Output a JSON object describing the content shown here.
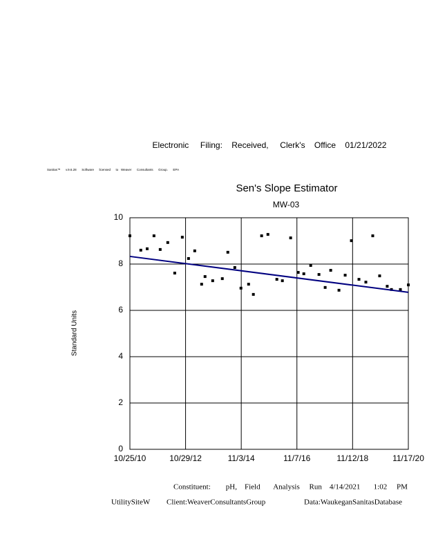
{
  "header": {
    "filing": "Electronic     Filing:    Received,     Clerk's    Office    01/21/2022",
    "software": "Sanitas™      v.9.6.28      Software      licensed      to   Weaver      Consultants      Group.      EPA"
  },
  "chart_data": {
    "type": "scatter",
    "title": "Sen's Slope Estimator",
    "subtitle": "MW-03",
    "y_label": "Standard Units",
    "x": [
      "10/25/10",
      "03/18/11",
      "06/10/11",
      "09/08/11",
      "11/29/11",
      "03/08/12",
      "06/08/12",
      "09/16/12",
      "12/07/12",
      "02/27/13",
      "05/29/13",
      "07/13/13",
      "10/22/13",
      "02/26/14",
      "05/10/14",
      "08/10/14",
      "10/30/14",
      "02/08/15",
      "04/12/15",
      "07/30/15",
      "10/21/15",
      "02/16/16",
      "04/29/16",
      "08/16/16",
      "11/24/16",
      "02/06/17",
      "05/08/17",
      "08/25/17",
      "11/15/17",
      "01/27/18",
      "05/16/18",
      "08/06/18",
      "10/27/18",
      "02/04/19",
      "05/06/19",
      "08/05/19",
      "11/04/19",
      "02/12/20",
      "04/08/20",
      "08/04/20",
      "11/17/20"
    ],
    "values": [
      9.22,
      8.6,
      8.66,
      9.22,
      8.63,
      8.93,
      7.61,
      9.16,
      8.24,
      8.57,
      7.13,
      7.46,
      7.28,
      7.37,
      8.51,
      7.85,
      6.96,
      7.13,
      6.69,
      9.22,
      9.28,
      7.34,
      7.28,
      9.13,
      7.64,
      7.58,
      7.94,
      7.55,
      6.99,
      7.73,
      6.87,
      7.52,
      9.01,
      7.34,
      7.22,
      9.22,
      7.49,
      7.04,
      6.9,
      6.9,
      7.1
    ],
    "color": "#000000",
    "trend_line": {
      "x": [
        "10/25/10",
        "11/17/20"
      ],
      "values": [
        8.33,
        6.78
      ],
      "color": "#000080"
    },
    "xlim": [
      "10/25/10",
      "11/17/20"
    ],
    "xticks": [
      "10/25/10",
      "10/29/12",
      "11/3/14",
      "11/7/16",
      "11/12/18",
      "11/17/20"
    ],
    "ylim": [
      0,
      10
    ],
    "yticks": [
      0,
      2,
      4,
      6,
      8,
      10
    ],
    "grid": true
  },
  "footer": {
    "run": "Constituent:        pH,    Field       Analysis     Run    4/14/2021       1:02     PM",
    "site": "UtilitySiteW",
    "client": "Client:WeaverConsultantsGroup",
    "database": "Data:WaukeganSanitasDatabase"
  }
}
